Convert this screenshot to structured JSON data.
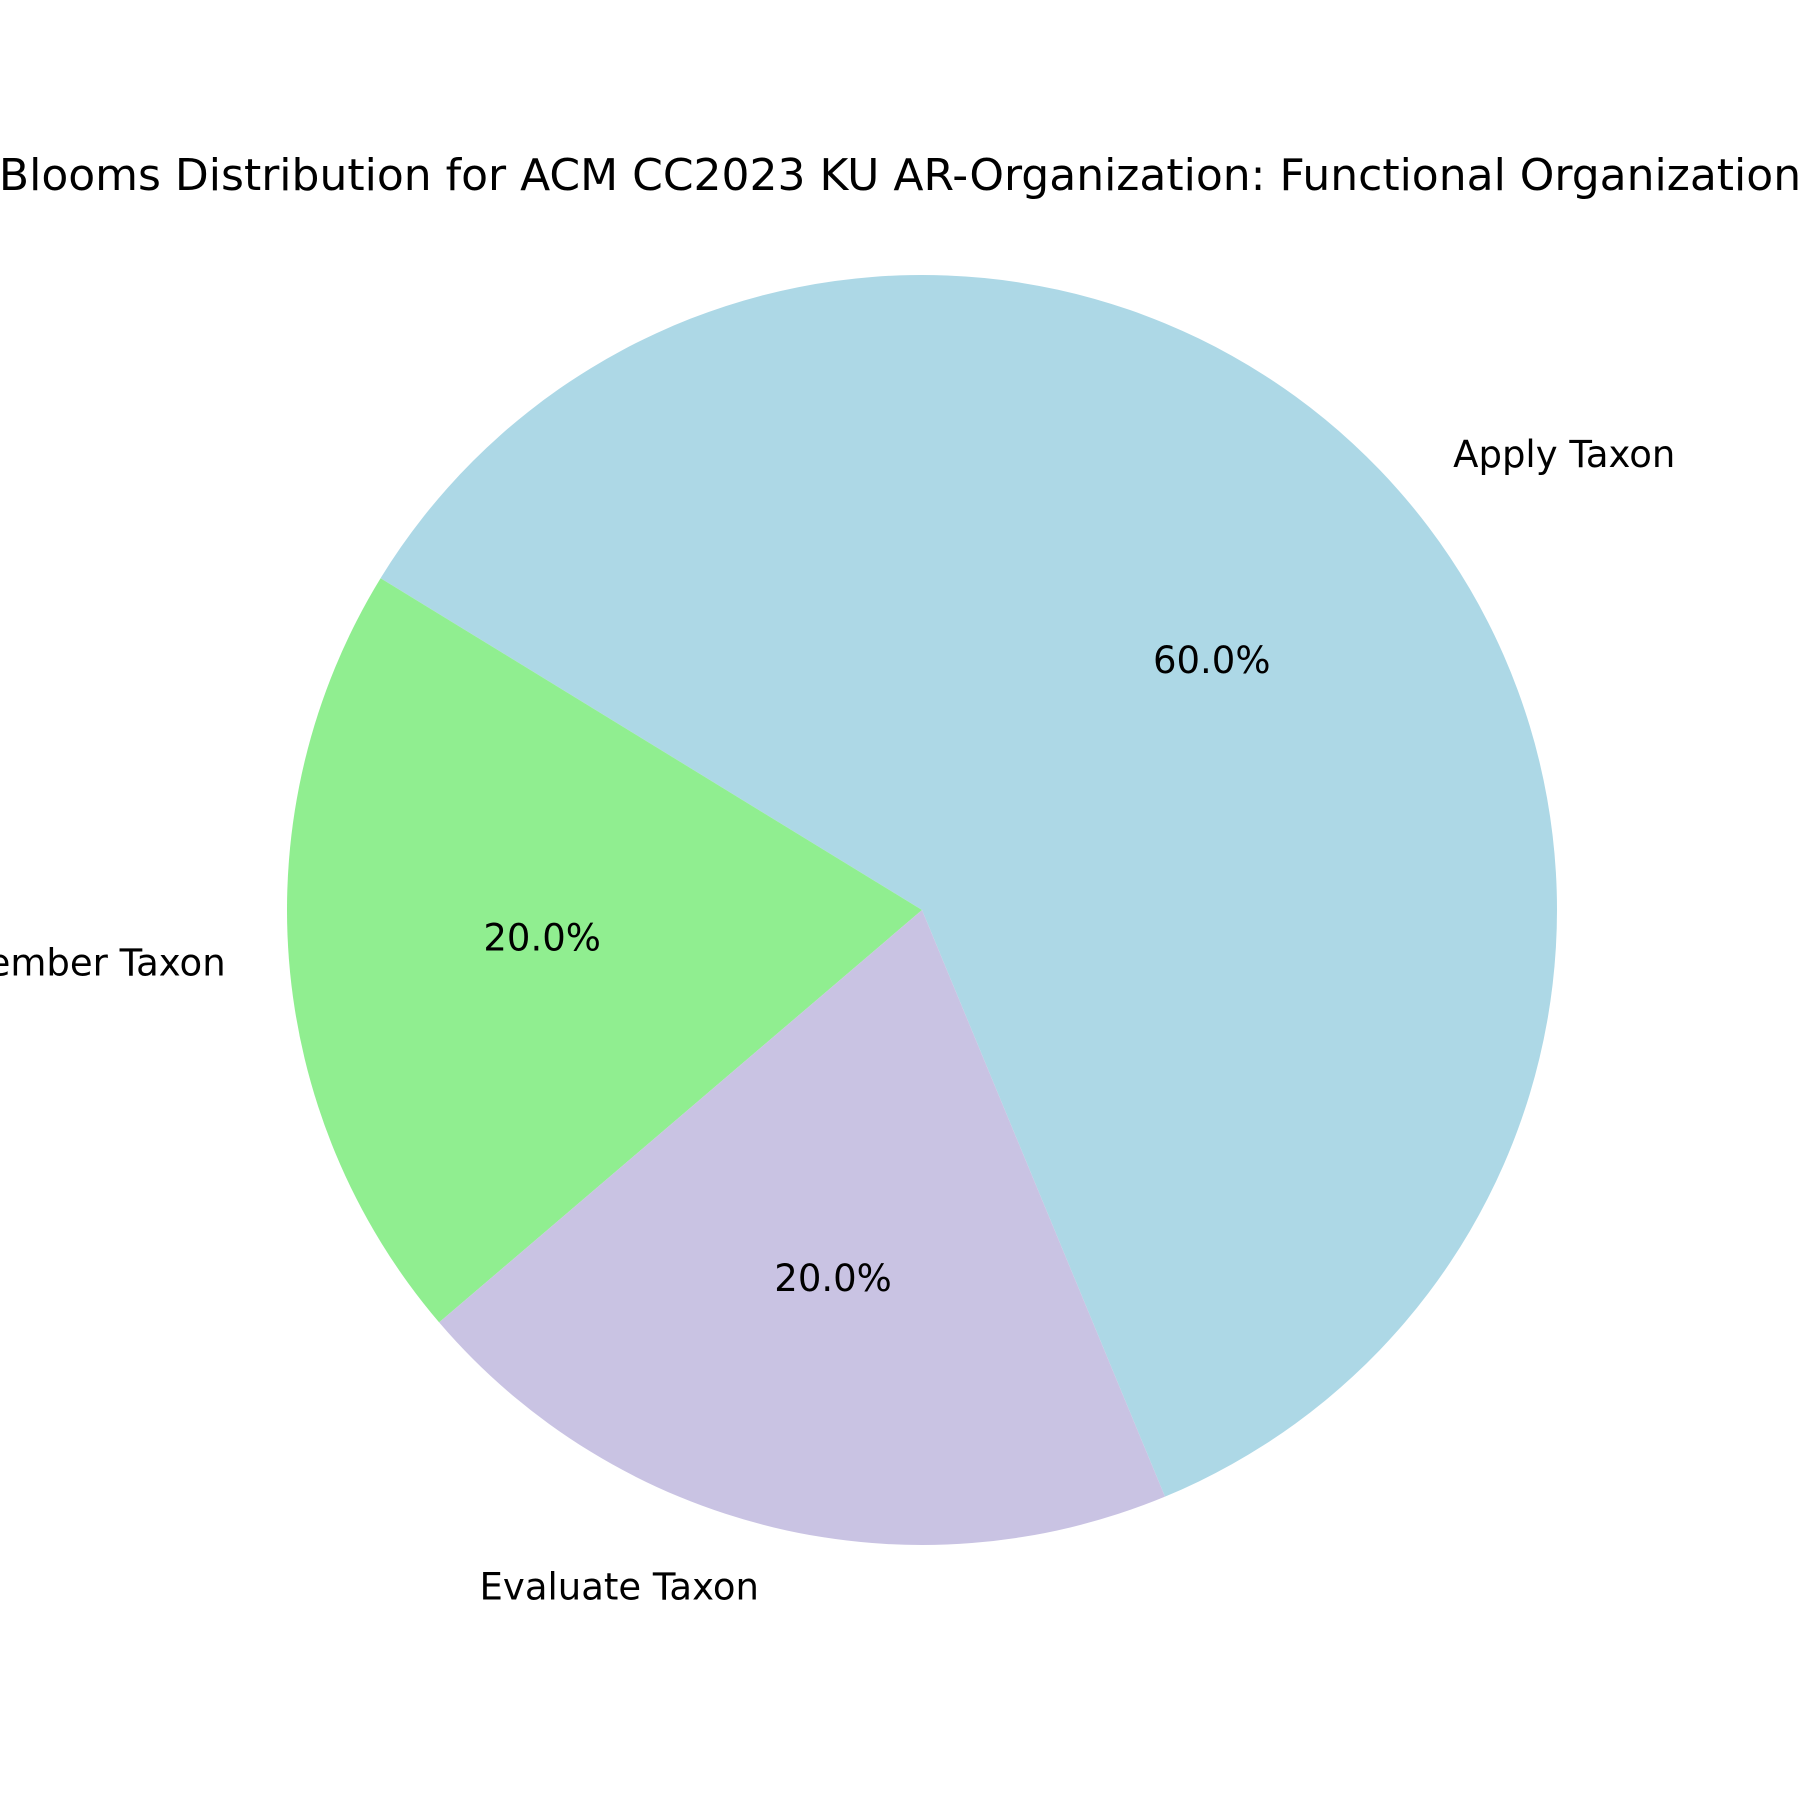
{
  "chart_data": {
    "type": "pie",
    "title": "Blooms Distribution for ACM CC2023 KU AR-Organization: Functional Organization",
    "slices": [
      {
        "label": "Apply Taxon",
        "value": 60.0,
        "pct_label": "60.0%",
        "color": "#add8e6"
      },
      {
        "label": "Remember Taxon",
        "value": 20.0,
        "pct_label": "20.0%",
        "color": "#90ee90"
      },
      {
        "label": "Evaluate Taxon",
        "value": 20.0,
        "pct_label": "20.0%",
        "color": "#c9c3e3"
      }
    ],
    "start_angle_deg": -67.5,
    "direction": "counterclockwise",
    "legend": "none"
  }
}
